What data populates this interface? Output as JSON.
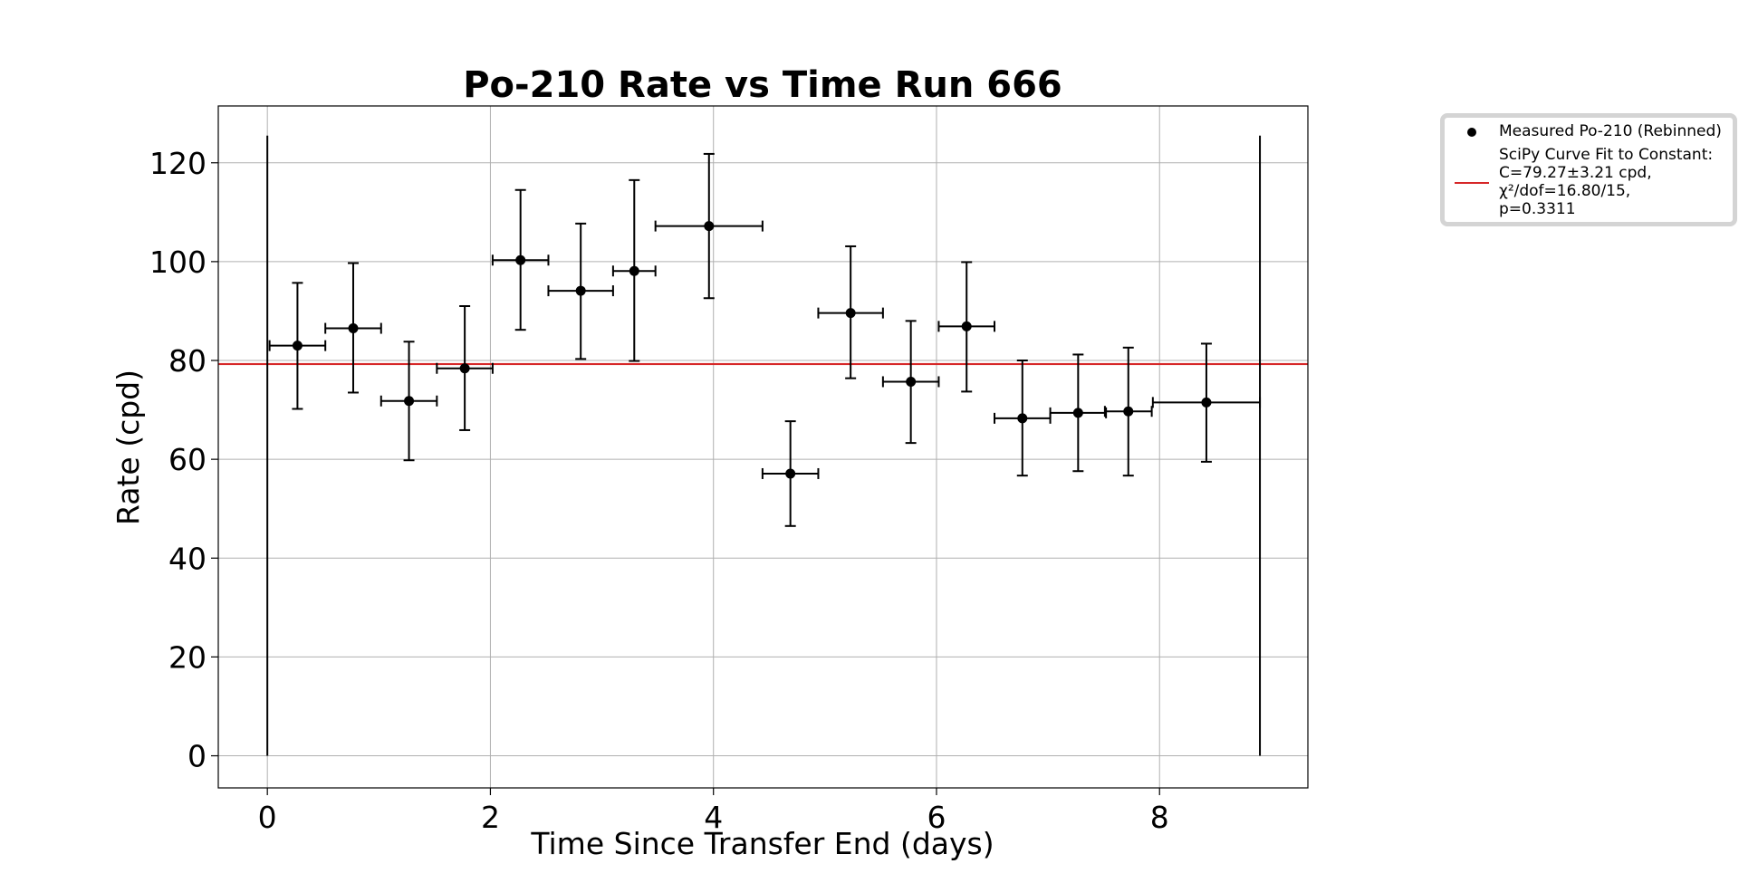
{
  "chart_data": {
    "type": "scatter",
    "title": "Po-210 Rate vs Time Run 666",
    "xlabel": "Time Since Transfer End (days)",
    "ylabel": "Rate (cpd)",
    "xlim": [
      -0.44,
      9.33
    ],
    "ylim": [
      -6.5,
      131.5
    ],
    "xticks": [
      0,
      2,
      4,
      6,
      8
    ],
    "yticks": [
      0,
      20,
      40,
      60,
      80,
      100,
      120
    ],
    "grid": true,
    "legend_position": "outside-top-right",
    "series": [
      {
        "name": "Measured Po-210 (Rebinned)",
        "kind": "errorbar",
        "color": "#000000",
        "points": [
          {
            "x": 0.27,
            "y": 83.0,
            "xerr": 0.25,
            "yerr_low": 12.8,
            "yerr_high": 12.7
          },
          {
            "x": 0.77,
            "y": 86.5,
            "xerr": 0.25,
            "yerr_low": 13.0,
            "yerr_high": 13.2
          },
          {
            "x": 1.27,
            "y": 71.8,
            "xerr": 0.25,
            "yerr_low": 12.0,
            "yerr_high": 12.0
          },
          {
            "x": 1.77,
            "y": 78.4,
            "xerr": 0.25,
            "yerr_low": 12.5,
            "yerr_high": 12.6
          },
          {
            "x": 2.27,
            "y": 100.3,
            "xerr": 0.25,
            "yerr_low": 14.1,
            "yerr_high": 14.2
          },
          {
            "x": 2.81,
            "y": 94.1,
            "xerr": 0.29,
            "yerr_low": 13.8,
            "yerr_high": 13.6
          },
          {
            "x": 3.29,
            "y": 98.1,
            "xerr": 0.19,
            "yerr_low": 18.2,
            "yerr_high": 18.4
          },
          {
            "x": 3.96,
            "y": 107.2,
            "xerr": 0.48,
            "yerr_low": 14.6,
            "yerr_high": 14.6
          },
          {
            "x": 4.69,
            "y": 57.1,
            "xerr": 0.25,
            "yerr_low": 10.6,
            "yerr_high": 10.6
          },
          {
            "x": 5.23,
            "y": 89.6,
            "xerr": 0.29,
            "yerr_low": 13.2,
            "yerr_high": 13.5
          },
          {
            "x": 5.77,
            "y": 75.7,
            "xerr": 0.25,
            "yerr_low": 12.4,
            "yerr_high": 12.3
          },
          {
            "x": 6.27,
            "y": 86.9,
            "xerr": 0.25,
            "yerr_low": 13.2,
            "yerr_high": 13.0
          },
          {
            "x": 6.77,
            "y": 68.3,
            "xerr": 0.25,
            "yerr_low": 11.6,
            "yerr_high": 11.7
          },
          {
            "x": 7.27,
            "y": 69.4,
            "xerr": 0.25,
            "yerr_low": 11.8,
            "yerr_high": 11.8
          },
          {
            "x": 7.72,
            "y": 69.7,
            "xerr": 0.21,
            "yerr_low": 13.0,
            "yerr_high": 12.9
          },
          {
            "x": 8.42,
            "y": 71.5,
            "xerr": 0.48,
            "yerr_low": 12.0,
            "yerr_high": 11.9
          }
        ]
      },
      {
        "name": "SciPy Curve Fit to Constant:\nC=79.27±3.21 cpd,\nχ²/dof=16.80/15,\np=0.3311",
        "legend_lines": [
          "SciPy Curve Fit to Constant:",
          "C=79.27±3.21 cpd,",
          "χ²/dof=16.80/15,",
          "p=0.3311"
        ],
        "kind": "hline",
        "color": "#d62728",
        "y": 79.27,
        "y_band": [
          79.0,
          79.55
        ]
      }
    ],
    "vertical_lines": [
      {
        "x": 0.0,
        "y_from": 0,
        "y_to": 125.5,
        "color": "#000000"
      },
      {
        "x": 8.9,
        "y_from": 0,
        "y_to": 125.5,
        "color": "#000000"
      }
    ]
  }
}
